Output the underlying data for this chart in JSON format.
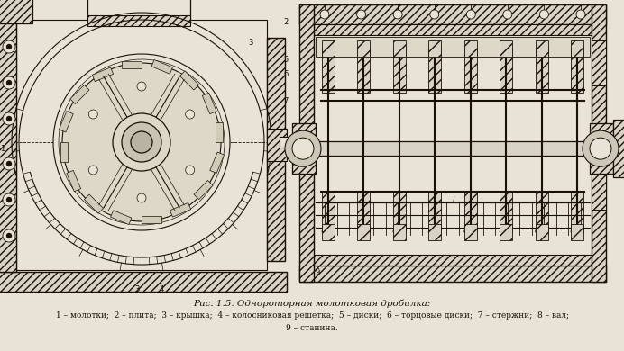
{
  "background_color": "#e8e3d5",
  "title": "Рис. 1.5. Однороторная молотковая дробилка:",
  "caption_line1": "1 – молотки;  2 – плита;  3 – крышка;  4 – колосниковая решетка;  5 – диски;  6 – торцовые диски;  7 – стержни;  8 – вал;",
  "caption_line2": "9 – станина.",
  "title_fontsize": 7.5,
  "caption_fontsize": 6.5,
  "fig_width": 6.92,
  "fig_height": 3.9,
  "dpi": 100,
  "line_color": "#1a1008",
  "line_width": 0.7
}
